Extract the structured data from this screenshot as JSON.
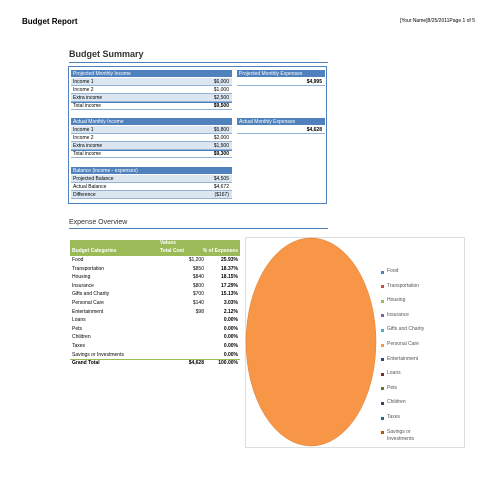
{
  "header": {
    "title": "Budget Report",
    "meta": "[Your Name]8/25/2011Page 1 of 5"
  },
  "summary": {
    "title": "Budget Summary",
    "projected_income": {
      "title": "Projected Monthly Income",
      "rows": [
        [
          "Income 1",
          "$6,000"
        ],
        [
          "Income 2",
          "$1,000"
        ],
        [
          "Extra income",
          "$2,500"
        ],
        [
          "Total income",
          "$9,500"
        ]
      ]
    },
    "actual_income": {
      "title": "Actual Monthly Income",
      "rows": [
        [
          "Income 1",
          "$5,800"
        ],
        [
          "Income 2",
          "$2,000"
        ],
        [
          "Extra income",
          "$1,500"
        ],
        [
          "Total income",
          "$9,300"
        ]
      ]
    },
    "balance": {
      "title": "Balance (income - expenses)",
      "rows": [
        [
          "Projected Balance",
          "$4,505"
        ],
        [
          "Actual Balance",
          "$4,672"
        ],
        [
          "Difference",
          "($167)"
        ]
      ]
    },
    "projected_expenses": {
      "title": "Projected Monthly Expenses",
      "value": "$4,995"
    },
    "actual_expenses": {
      "title": "Actual Monthly Expenses",
      "value": "$4,628"
    }
  },
  "overview": {
    "title": "Expense Overview",
    "table": {
      "values_label": "Values",
      "columns": [
        "Budget Categories",
        "Total Cost",
        "% of Expenses"
      ],
      "rows": [
        {
          "category": "Food",
          "cost": "$1,200",
          "percent": "25.93%"
        },
        {
          "category": "Transportation",
          "cost": "$850",
          "percent": "18.37%"
        },
        {
          "category": "Housing",
          "cost": "$840",
          "percent": "18.15%"
        },
        {
          "category": "Insurance",
          "cost": "$800",
          "percent": "17.29%"
        },
        {
          "category": "Gifts and Charity",
          "cost": "$700",
          "percent": "15.13%"
        },
        {
          "category": "Personal Care",
          "cost": "$140",
          "percent": "3.03%"
        },
        {
          "category": "Entertainment",
          "cost": "$98",
          "percent": "2.12%"
        },
        {
          "category": "Loans",
          "percent": "0.00%"
        },
        {
          "category": "Pets",
          "percent": "0.00%"
        },
        {
          "category": "Children",
          "percent": "0.00%"
        },
        {
          "category": "Taxes",
          "percent": "0.00%"
        },
        {
          "category": "Savings or Investments",
          "percent": "0.00%"
        }
      ],
      "total": {
        "category": "Grand Total",
        "cost": "$4,628",
        "percent": "100.00%"
      }
    },
    "legend": [
      "Food",
      "Transportation",
      "Housing",
      "Insurance",
      "Gifts and Charity",
      "Personal Care",
      "Entertainment",
      "Loans",
      "Pets",
      "Children",
      "Taxes",
      "Savings or Investments"
    ]
  }
}
